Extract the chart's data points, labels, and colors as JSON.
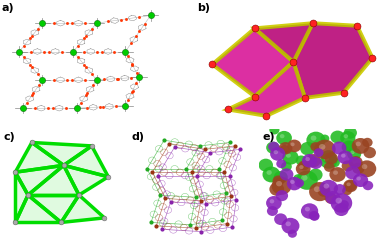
{
  "labels": [
    "a)",
    "b)",
    "c)",
    "d)",
    "e)"
  ],
  "label_fontsize": 8,
  "label_fontweight": "bold",
  "bg_color": "#ffffff",
  "panel_a": {
    "node_color": "#00cc00",
    "bond_color": "#777777",
    "ring_color": "#888888",
    "oxygen_color": "#ff3300",
    "carbon_color": "#444444",
    "light_bond": "#aaaaaa"
  },
  "panel_b": {
    "face_color": "#ee22aa",
    "face_color2": "#cc1188",
    "edge_color": "#cccc00",
    "edge_color2": "#aaaa00",
    "node_color": "#ff2222",
    "bg_color": "#111111"
  },
  "panel_c": {
    "network_color": "#00dd00",
    "node_color": "#888888",
    "lw": 2.5
  },
  "panel_d": {
    "colors": [
      "#22aa22",
      "#993311",
      "#8822aa"
    ],
    "ring_alpha": 0.6
  },
  "panel_e": {
    "colors": [
      "#22bb22",
      "#994422",
      "#8822bb"
    ],
    "n_spheres": 12
  }
}
